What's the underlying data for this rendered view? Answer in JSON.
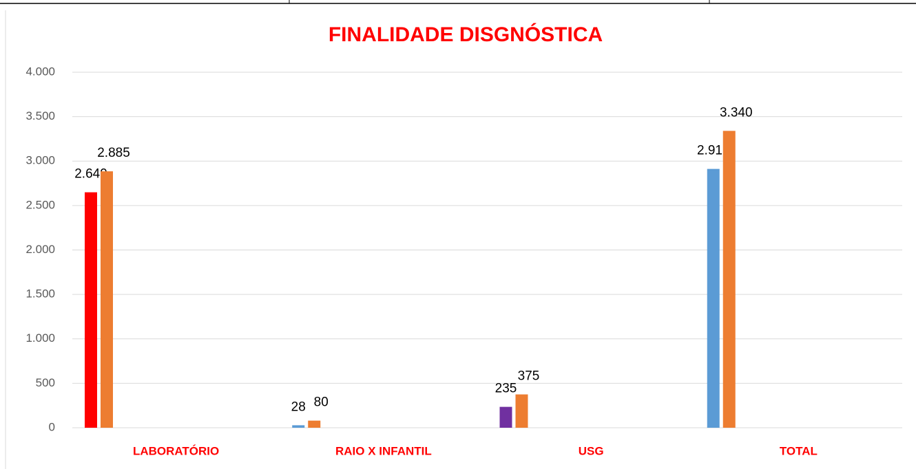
{
  "chart_data": {
    "type": "bar",
    "title": "FINALIDADE DISGNÓSTICA",
    "categories": [
      "LABORATÓRIO",
      "RAIO X INFANTIL",
      "USG",
      "TOTAL"
    ],
    "series": [
      {
        "colors": [
          "#ff0000",
          "#5b9bd5",
          "#7030a0",
          "#5b9bd5"
        ],
        "values": [
          2649,
          28,
          235,
          2912
        ],
        "value_labels": [
          "2.649",
          "28",
          "235",
          "2.912"
        ]
      },
      {
        "color": "#ed7d31",
        "values": [
          2885,
          80,
          375,
          3340
        ],
        "value_labels": [
          "2.885",
          "80",
          "375",
          "3.340"
        ]
      }
    ],
    "ylim": [
      0,
      4000
    ],
    "yticks": [
      0,
      500,
      {
        "value": 1000,
        "label": "1.000"
      },
      {
        "value": 1500,
        "label": "1.500"
      },
      {
        "value": 2000,
        "label": "2.000"
      },
      {
        "value": 2500,
        "label": "2.500"
      },
      {
        "value": 3000,
        "label": "3.000"
      },
      {
        "value": 3500,
        "label": "3.500"
      },
      {
        "value": 4000,
        "label": "4.000"
      }
    ],
    "grid": true
  }
}
